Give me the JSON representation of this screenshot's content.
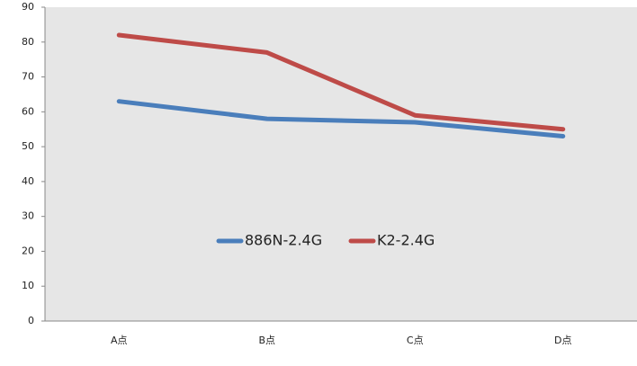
{
  "chart_data": {
    "type": "line",
    "categories": [
      "A点",
      "B点",
      "C点",
      "D点"
    ],
    "series": [
      {
        "name": "886N-2.4G",
        "color": "#4a7ebb",
        "values": [
          63,
          58,
          57,
          53
        ]
      },
      {
        "name": "K2-2.4G",
        "color": "#be4b48",
        "values": [
          82,
          77,
          59,
          55
        ]
      }
    ],
    "ylim": [
      0,
      90
    ],
    "yticks": [
      0,
      10,
      20,
      30,
      40,
      50,
      60,
      70,
      80,
      90
    ],
    "grid": false,
    "legend": "center"
  }
}
